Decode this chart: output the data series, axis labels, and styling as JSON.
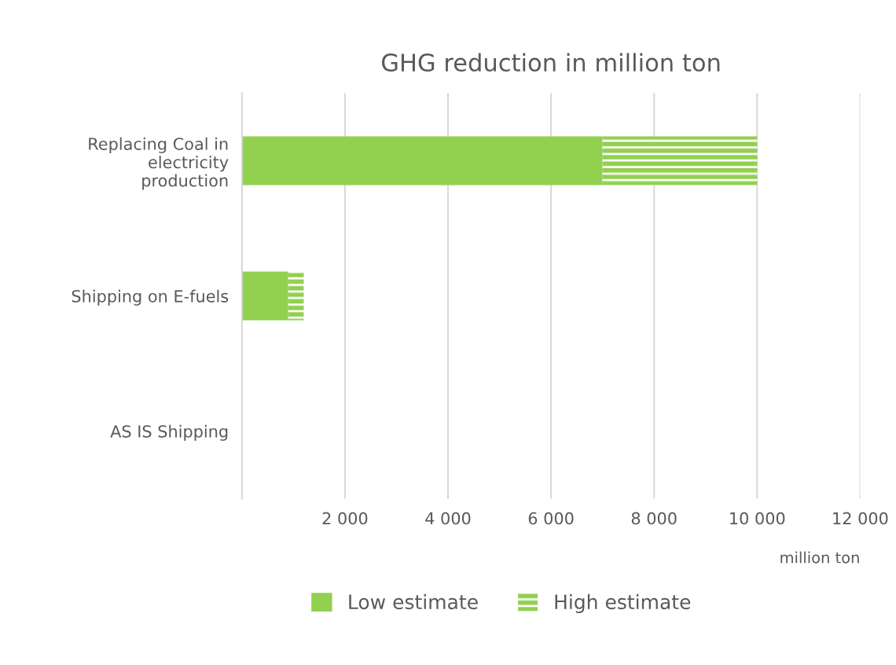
{
  "chart_data": {
    "type": "bar",
    "orientation": "horizontal",
    "stacked": true,
    "title": "GHG reduction in million ton",
    "xlabel": "million ton",
    "categories": [
      "Replacing Coal in electricity production",
      "Shipping on E-fuels",
      "AS IS Shipping"
    ],
    "series": [
      {
        "name": "Low estimate",
        "color": "#92d050",
        "values": [
          7000,
          900,
          0
        ]
      },
      {
        "name": "High estimate",
        "color": "#92d050",
        "values": [
          3000,
          300,
          0
        ]
      }
    ],
    "xlim": [
      0,
      12000
    ],
    "xticks": [
      {
        "value": 0,
        "label": null
      },
      {
        "value": 2000,
        "label": "2 000"
      },
      {
        "value": 4000,
        "label": "4 000"
      },
      {
        "value": 6000,
        "label": "6 000"
      },
      {
        "value": 8000,
        "label": "8 000"
      },
      {
        "value": 10000,
        "label": "10 000"
      },
      {
        "value": 12000,
        "label": "12 000"
      }
    ],
    "grid": "x",
    "legend": "bottom"
  }
}
